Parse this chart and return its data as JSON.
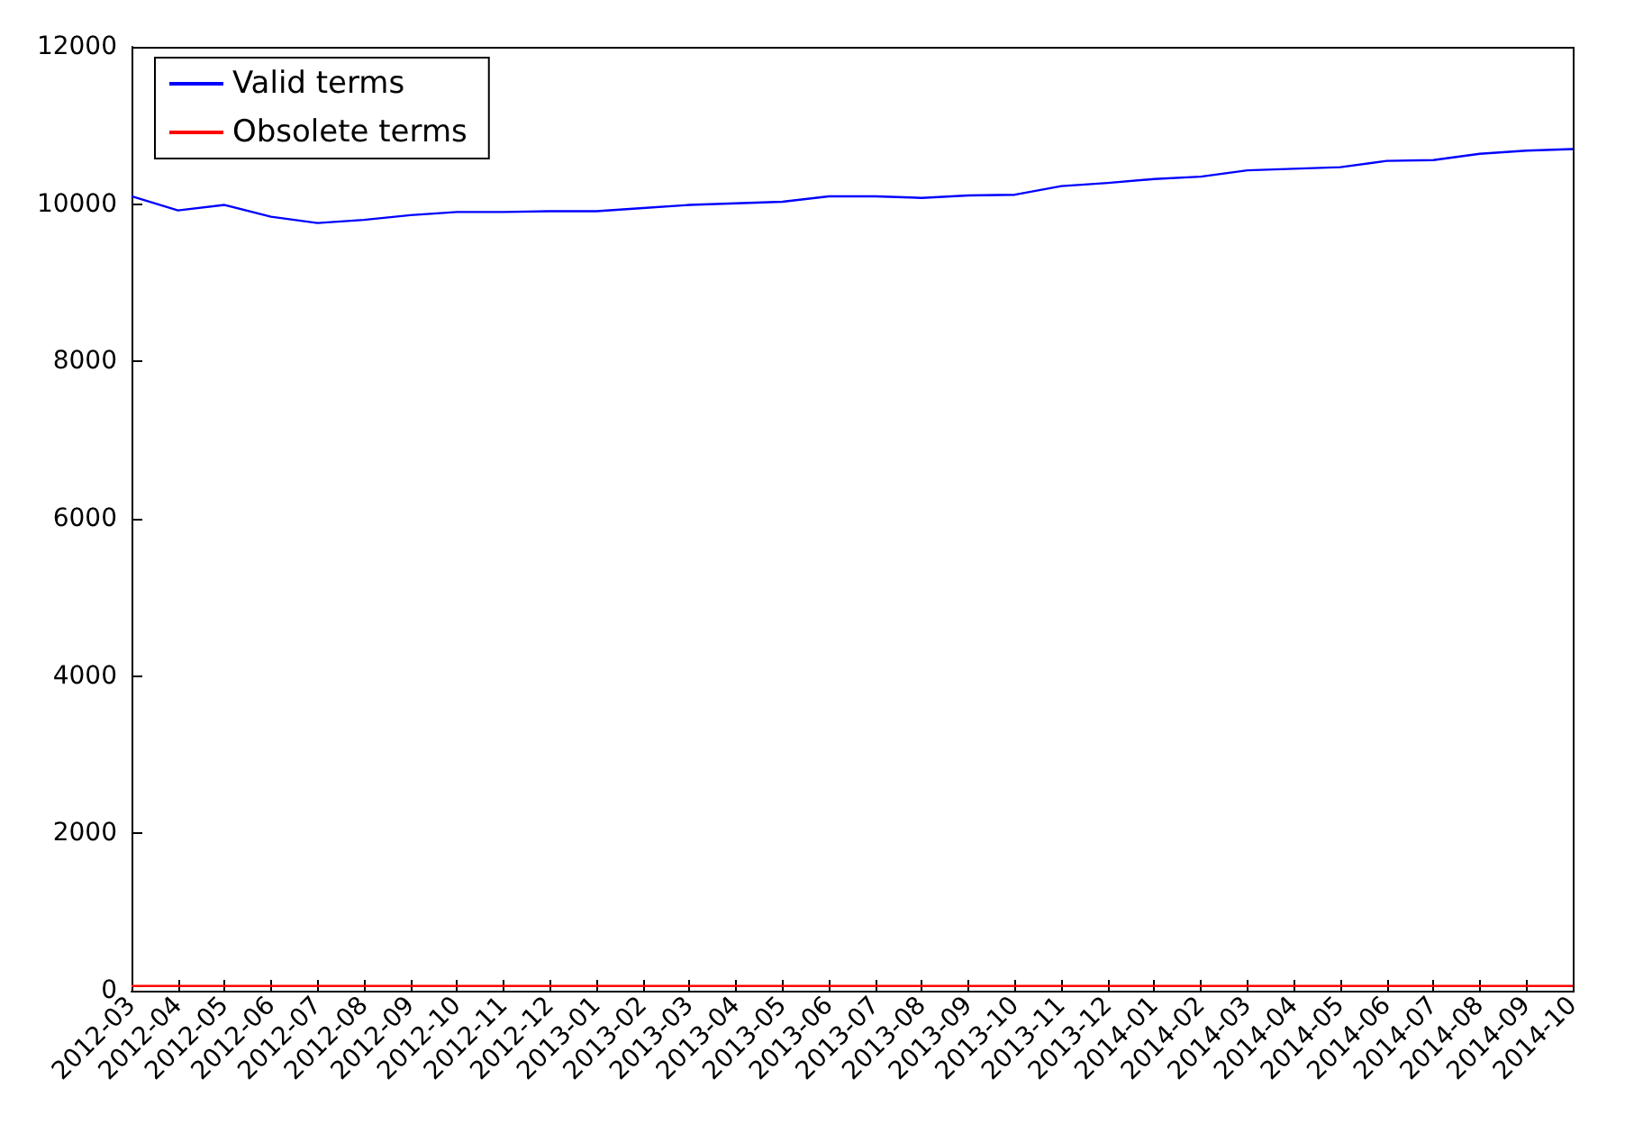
{
  "chart_data": {
    "type": "line",
    "categories": [
      "2012-03",
      "2012-04",
      "2012-05",
      "2012-06",
      "2012-07",
      "2012-08",
      "2012-09",
      "2012-10",
      "2012-11",
      "2012-12",
      "2013-01",
      "2013-02",
      "2013-03",
      "2013-04",
      "2013-05",
      "2013-06",
      "2013-07",
      "2013-08",
      "2013-09",
      "2013-10",
      "2013-11",
      "2013-12",
      "2014-01",
      "2014-02",
      "2014-03",
      "2014-04",
      "2014-05",
      "2014-06",
      "2014-07",
      "2014-08",
      "2014-09",
      "2014-10"
    ],
    "series": [
      {
        "name": "Valid terms",
        "color": "#0000ff",
        "values": [
          10100,
          9920,
          9990,
          9840,
          9760,
          9800,
          9860,
          9900,
          9900,
          9910,
          9910,
          9950,
          9990,
          10010,
          10030,
          10100,
          10100,
          10080,
          10110,
          10120,
          10230,
          10270,
          10320,
          10350,
          10430,
          10450,
          10470,
          10550,
          10560,
          10640,
          10680,
          10700
        ]
      },
      {
        "name": "Obsolete terms",
        "color": "#ff0000",
        "values": [
          60,
          60,
          60,
          60,
          60,
          60,
          60,
          60,
          60,
          60,
          60,
          60,
          60,
          60,
          60,
          60,
          60,
          60,
          60,
          60,
          60,
          60,
          60,
          60,
          60,
          60,
          60,
          60,
          60,
          60,
          60,
          60
        ]
      }
    ],
    "ylim": [
      0,
      12000
    ],
    "yticks": [
      0,
      2000,
      4000,
      6000,
      8000,
      10000,
      12000
    ],
    "grid": false,
    "legend": "top left",
    "marker": "none",
    "line_style": "solid"
  }
}
